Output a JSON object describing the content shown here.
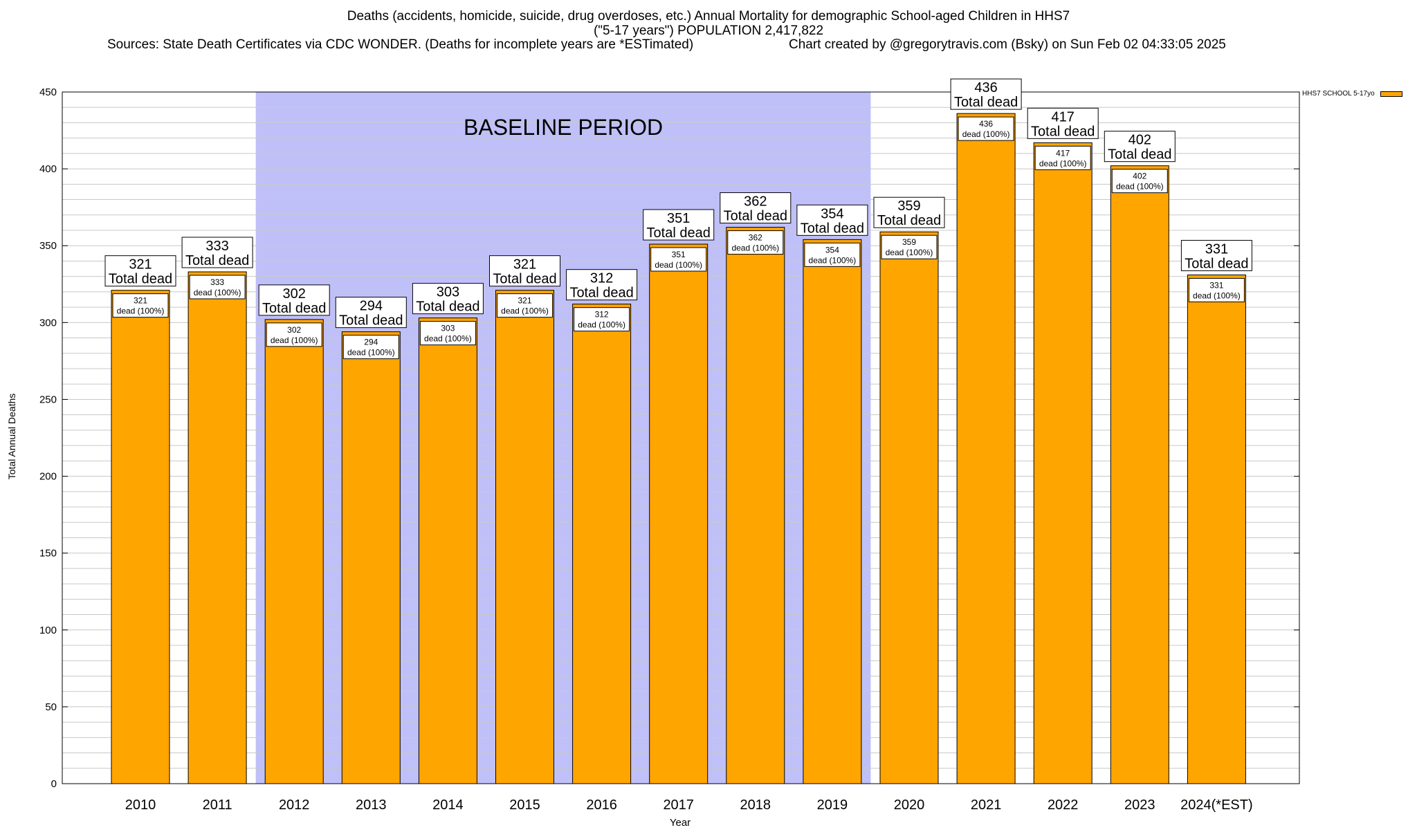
{
  "header": {
    "title_line1": "Deaths (accidents, homicide, suicide, drug overdoses, etc.) Annual Mortality for demographic School-aged Children in HHS7",
    "title_line2": "(\"5-17 years\") POPULATION 2,417,822",
    "sources": "Sources: State Death Certificates via CDC WONDER. (Deaths for incomplete years are *ESTimated)",
    "credit": "Chart created by @gregorytravis.com (Bsky) on Sun Feb 02 04:33:05 2025"
  },
  "chart_data": {
    "type": "bar",
    "categories": [
      "2010",
      "2011",
      "2012",
      "2013",
      "2014",
      "2015",
      "2016",
      "2017",
      "2018",
      "2019",
      "2020",
      "2021",
      "2022",
      "2023",
      "2024(*EST)"
    ],
    "series": [
      {
        "name": "HHS7 SCHOOL 5-17yo",
        "values": [
          321,
          333,
          302,
          294,
          303,
          321,
          312,
          351,
          362,
          354,
          359,
          436,
          417,
          402,
          331
        ]
      }
    ],
    "top_label_suffix": "Total dead",
    "inner_label_suffix": "dead (100%)",
    "xlabel": "Year",
    "ylabel": "Total Annual Deaths",
    "ylim": [
      0,
      450
    ],
    "yticks": [
      0,
      50,
      100,
      150,
      200,
      250,
      300,
      350,
      400,
      450
    ],
    "minor_grid_step": 10,
    "grid": true,
    "legend_position": "top-right",
    "baseline": {
      "label": "BASELINE PERIOD",
      "from": "2012",
      "to": "2019"
    },
    "colors": {
      "bar": "#ffa500",
      "baseline": "#c0c0f8",
      "grid": "#c8c8c8",
      "border": "#000000"
    }
  }
}
